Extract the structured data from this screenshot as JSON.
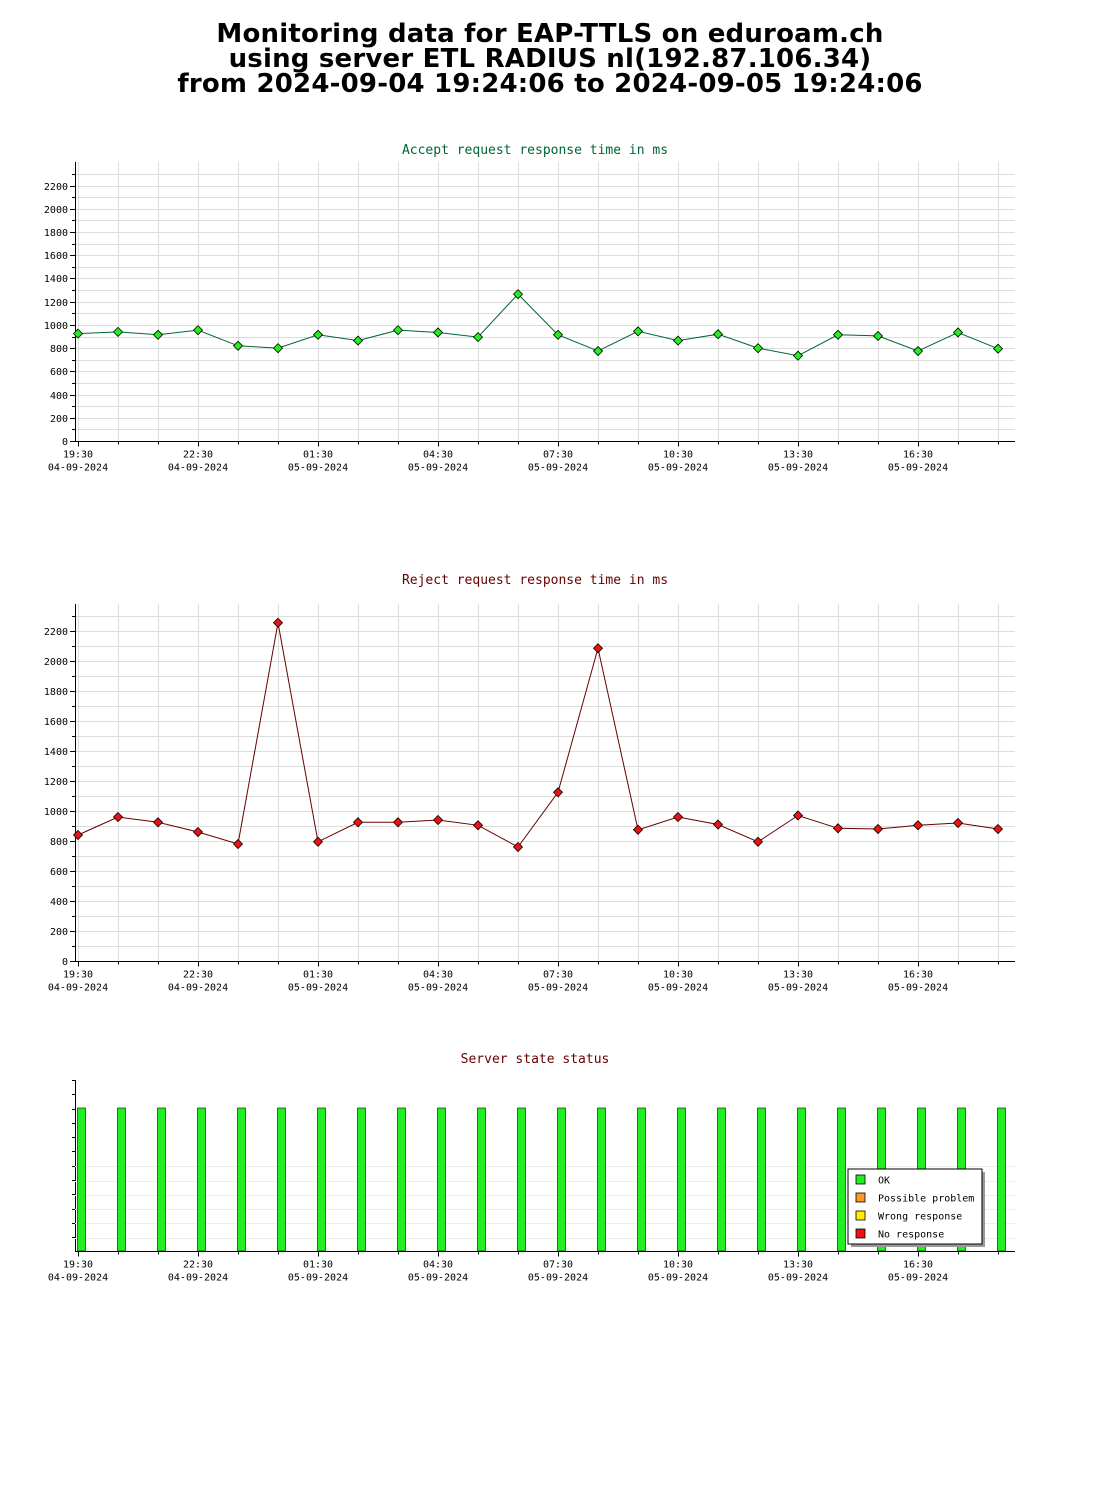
{
  "header": {
    "line1": "Monitoring data for EAP-TTLS on eduroam.ch",
    "line2": "using server ETL RADIUS nl(192.87.106.34)",
    "line3": "from 2024-09-04 19:24:06 to 2024-09-05 19:24:06"
  },
  "colors": {
    "accept_title": "#006633",
    "reject_title": "#660000",
    "state_title": "#660000",
    "accept_line": "#006633",
    "accept_marker": "#22ee22",
    "reject_line": "#660000",
    "reject_marker": "#ee1111",
    "ok": "#22ee22",
    "possible_problem": "#ff9922",
    "wrong_response": "#ffee00",
    "no_response": "#ee1111"
  },
  "x_ticks": [
    {
      "time": "19:30",
      "date": "04-09-2024"
    },
    {
      "time": "22:30",
      "date": "04-09-2024"
    },
    {
      "time": "01:30",
      "date": "05-09-2024"
    },
    {
      "time": "04:30",
      "date": "05-09-2024"
    },
    {
      "time": "07:30",
      "date": "05-09-2024"
    },
    {
      "time": "10:30",
      "date": "05-09-2024"
    },
    {
      "time": "13:30",
      "date": "05-09-2024"
    },
    {
      "time": "16:30",
      "date": "05-09-2024"
    }
  ],
  "chart_data": [
    {
      "type": "line",
      "title": "Accept request response time in ms",
      "ylim": [
        0,
        2300
      ],
      "yticks": [
        0,
        200,
        400,
        600,
        800,
        1000,
        1200,
        1400,
        1600,
        1800,
        2000,
        2200
      ],
      "grid": true,
      "x": [
        "19:30",
        "20:30",
        "21:30",
        "22:30",
        "23:30",
        "00:36",
        "01:30",
        "02:30",
        "03:30",
        "04:30",
        "05:30",
        "06:30",
        "07:30",
        "08:30",
        "09:30",
        "10:30",
        "11:30",
        "12:30",
        "13:30",
        "14:30",
        "15:30",
        "16:30",
        "17:30",
        "18:30"
      ],
      "values": [
        925,
        940,
        915,
        955,
        820,
        800,
        915,
        865,
        955,
        935,
        895,
        1265,
        915,
        775,
        945,
        865,
        920,
        800,
        735,
        915,
        905,
        775,
        935,
        795
      ]
    },
    {
      "type": "line",
      "title": "Reject request response time in ms",
      "ylim": [
        0,
        2300
      ],
      "yticks": [
        0,
        200,
        400,
        600,
        800,
        1000,
        1200,
        1400,
        1600,
        1800,
        2000,
        2200
      ],
      "grid": true,
      "x": [
        "19:30",
        "20:30",
        "21:30",
        "22:30",
        "23:30",
        "00:36",
        "01:30",
        "02:30",
        "03:30",
        "04:30",
        "05:30",
        "06:30",
        "07:30",
        "08:30",
        "09:30",
        "10:30",
        "11:30",
        "12:30",
        "13:30",
        "14:30",
        "15:30",
        "16:30",
        "17:30",
        "18:30"
      ],
      "values": [
        840,
        960,
        925,
        860,
        780,
        2255,
        795,
        925,
        925,
        940,
        905,
        760,
        1125,
        2085,
        875,
        960,
        910,
        795,
        970,
        885,
        880,
        905,
        920,
        880
      ]
    },
    {
      "type": "bar",
      "title": "Server state status",
      "grid": false,
      "legend_position": "bottom-right",
      "x": [
        "19:30",
        "20:30",
        "21:30",
        "22:30",
        "23:30",
        "00:36",
        "01:30",
        "02:30",
        "03:30",
        "04:30",
        "05:30",
        "06:30",
        "07:30",
        "08:30",
        "09:30",
        "10:30",
        "11:30",
        "12:30",
        "13:30",
        "14:30",
        "15:30",
        "16:30",
        "17:30",
        "18:30"
      ],
      "states": [
        "OK",
        "OK",
        "OK",
        "OK",
        "OK",
        "OK",
        "OK",
        "OK",
        "OK",
        "OK",
        "OK",
        "OK",
        "OK",
        "OK",
        "OK",
        "OK",
        "OK",
        "OK",
        "OK",
        "OK",
        "OK",
        "OK",
        "OK",
        "OK"
      ],
      "legend": [
        {
          "label": "OK",
          "color_key": "ok"
        },
        {
          "label": "Possible problem",
          "color_key": "possible_problem"
        },
        {
          "label": "Wrong response",
          "color_key": "wrong_response"
        },
        {
          "label": "No response",
          "color_key": "no_response"
        }
      ]
    }
  ]
}
